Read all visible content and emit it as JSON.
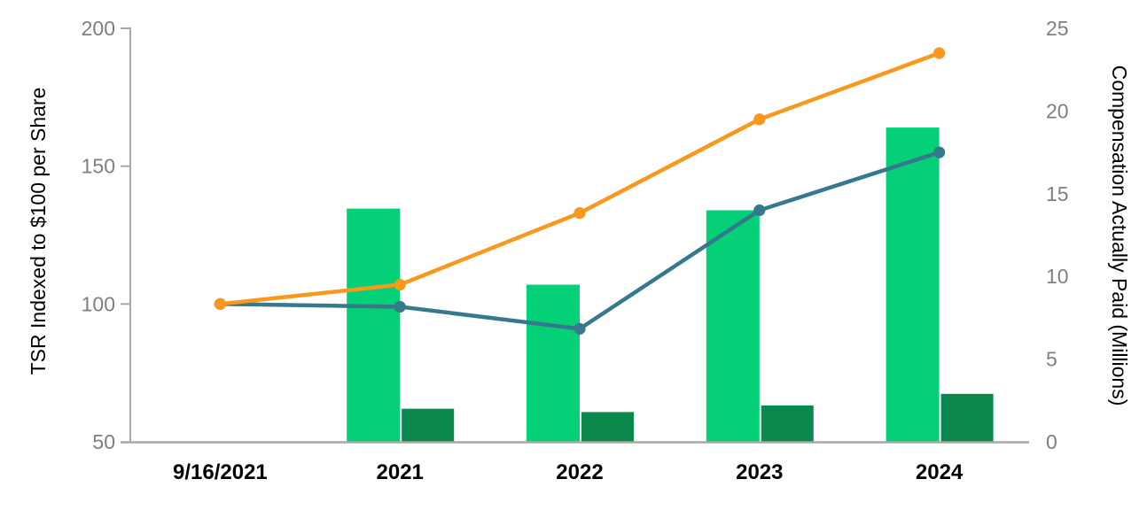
{
  "figure": {
    "background": "#ffffff"
  },
  "chart_data": {
    "type": "bar",
    "subtype": "combo-bar-line-dual-axis",
    "title": "",
    "categories": [
      "9/16/2021",
      "2021",
      "2022",
      "2023",
      "2024"
    ],
    "series": [
      {
        "name": "light-green-bars",
        "kind": "bar",
        "axis": "right",
        "color": "#03D077",
        "values": [
          null,
          14.1,
          9.5,
          14.0,
          19.0
        ]
      },
      {
        "name": "dark-green-bars",
        "kind": "bar",
        "axis": "right",
        "color": "#098A4C",
        "values": [
          null,
          2.0,
          1.8,
          2.2,
          2.9
        ]
      },
      {
        "name": "teal-line",
        "kind": "line",
        "axis": "left",
        "color": "#37798C",
        "values": [
          100,
          99,
          91,
          134,
          155
        ]
      },
      {
        "name": "orange-line",
        "kind": "line",
        "axis": "left",
        "color": "#F8981D",
        "values": [
          100,
          107,
          133,
          167,
          191
        ]
      }
    ],
    "left_axis": {
      "title": "TSR Indexed to $100 per Share",
      "min": 50,
      "max": 200,
      "ticks": [
        200,
        150,
        100,
        50
      ]
    },
    "right_axis": {
      "title": "Compensation Actually Paid (Millions)",
      "min": 0,
      "max": 25,
      "ticks": [
        25,
        20,
        15,
        10,
        5,
        0
      ]
    },
    "x_axis": {
      "labels": [
        "9/16/2021",
        "2021",
        "2022",
        "2023",
        "2024"
      ]
    },
    "legend": "none",
    "grid": "off",
    "colors": {
      "axis_line": "#A8A8A8",
      "tick_label": "#7F7F7F",
      "axis_title_text": "#000000",
      "x_label_text": "#000000"
    }
  }
}
